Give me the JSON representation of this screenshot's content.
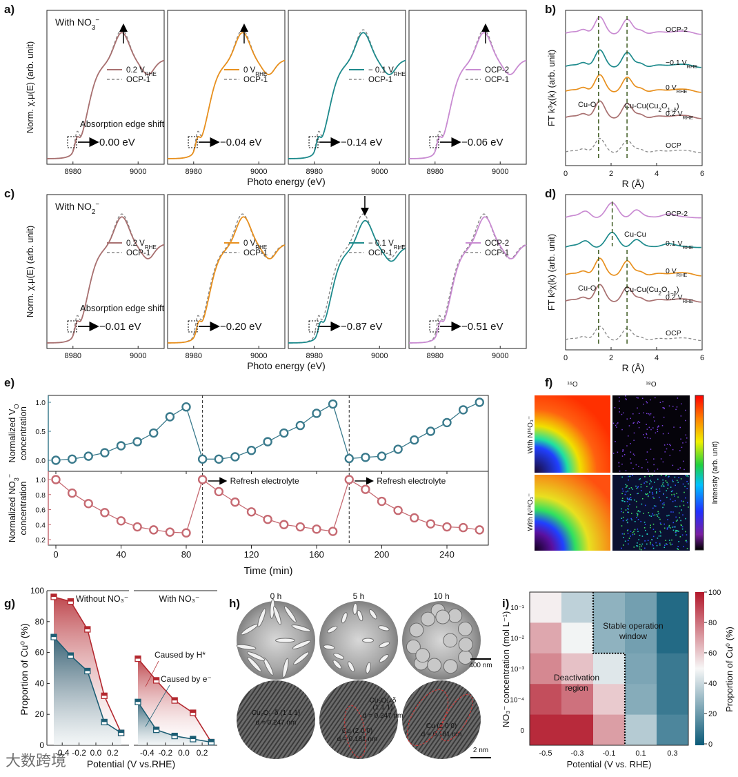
{
  "watermark": "大数跨境",
  "xanes": {
    "xlabel": "Photo energy (eV)",
    "ylabel": "Norm. χ.μ(E) (arb. unit)",
    "xticks": [
      8980,
      9000
    ],
    "xrange": [
      8972,
      9008
    ],
    "edge_text": "Absorption edge shift",
    "panels": [
      {
        "label": "a)",
        "condition": {
          "main": "With NO",
          "sub": "3",
          "sup": "−"
        },
        "subplots": [
          {
            "series": "0.2 V",
            "sub": "RHE",
            "ref": "OCP-1",
            "shift": "0.00 eV",
            "shift_value": 0.0,
            "color": "#a87070",
            "arrow": "up"
          },
          {
            "series": "0 V",
            "sub": "RHE",
            "ref": "OCP-1",
            "shift": "−0.04 eV",
            "shift_value": -0.04,
            "color": "#e8901e",
            "arrow": "up"
          },
          {
            "series": "− 0.1 V",
            "sub": "RHE",
            "ref": "OCP-1",
            "shift": "−0.14 eV",
            "shift_value": -0.14,
            "color": "#1d8a8c",
            "arrow": "none"
          },
          {
            "series": "OCP-2",
            "sub": "",
            "ref": "OCP-1",
            "shift": "−0.06 eV",
            "shift_value": -0.06,
            "color": "#c98bd2",
            "arrow": "up"
          }
        ]
      },
      {
        "label": "c)",
        "condition": {
          "main": "With NO",
          "sub": "2",
          "sup": "−"
        },
        "subplots": [
          {
            "series": "0.2 V",
            "sub": "RHE",
            "ref": "OCP-1",
            "shift": "−0.01 eV",
            "shift_value": -0.01,
            "color": "#a87070",
            "arrow": "none"
          },
          {
            "series": "0 V",
            "sub": "RHE",
            "ref": "OCP-1",
            "shift": "−0.20 eV",
            "shift_value": -0.2,
            "color": "#e8901e",
            "arrow": "none"
          },
          {
            "series": "− 0.1 V",
            "sub": "RHE",
            "ref": "OCP-1",
            "shift": "−0.87 eV",
            "shift_value": -0.87,
            "color": "#1d8a8c",
            "arrow": "down"
          },
          {
            "series": "OCP-2",
            "sub": "",
            "ref": "OCP-1",
            "shift": "−0.51 eV",
            "shift_value": -0.51,
            "color": "#c98bd2",
            "arrow": "none"
          }
        ]
      }
    ]
  },
  "exafs": {
    "xlabel": "R (Å)",
    "ylabel": "FT k³χ(k) (arb. unit)",
    "xticks": [
      0,
      2,
      4,
      6
    ],
    "panels": [
      {
        "label": "b)",
        "traces": [
          {
            "name": "OCP-2",
            "sub": "",
            "color": "#c98bd2"
          },
          {
            "name": "−0.1 V",
            "sub": "RHE",
            "color": "#1d8a8c"
          },
          {
            "name": "0 V",
            "sub": "RHE",
            "color": "#e8901e"
          },
          {
            "name": "0.2 V",
            "sub": "RHE",
            "color": "#a87070"
          },
          {
            "name": "OCP",
            "sub": "",
            "color": "#888888"
          }
        ],
        "annot_cuo": "Cu-O",
        "annot_cucu2o": {
          "main": "Cu-Cu(Cu",
          "s1": "2",
          "mid": "O",
          "s2": "1−δ",
          "end": ")"
        },
        "annot_cucu": ""
      },
      {
        "label": "d)",
        "traces": [
          {
            "name": "OCP-2",
            "sub": "",
            "color": "#c98bd2"
          },
          {
            "name": "0.1 V",
            "sub": "RHE",
            "color": "#1d8a8c"
          },
          {
            "name": "0 V",
            "sub": "RHE",
            "color": "#e8901e"
          },
          {
            "name": "0.2 V",
            "sub": "RHE",
            "color": "#a87070"
          },
          {
            "name": "OCP",
            "sub": "",
            "color": "#888888"
          }
        ],
        "annot_cuo": "Cu-O",
        "annot_cucu2o": {
          "main": "Cu-Cu(Cu",
          "s1": "2",
          "mid": "O",
          "s2": "1−δ",
          "end": ")"
        },
        "annot_cucu": "Cu-Cu"
      }
    ]
  },
  "panel_f": {
    "label": "f)",
    "col_labels": [
      "¹⁶O",
      "¹⁸O"
    ],
    "row_labels": [
      "With N¹⁶O₃⁻",
      "With N¹⁸O₃⁻"
    ],
    "colorbar_label": "Intensity (arb. unit)"
  },
  "panel_h": {
    "label": "h)",
    "times": [
      "0 h",
      "5 h",
      "10 h"
    ],
    "scale_top": "400 nm",
    "scale_bottom": "2 nm",
    "annotations": [
      [
        "Cu₂O₁₋δ (1 1 1)",
        "d = 0.247 nm"
      ],
      [
        "Cu₂O₁₋δ",
        "(1 1 1)",
        "d = 0.247 nm",
        "Cu (2 0 0)",
        "d = 0.181 nm"
      ],
      [
        "Cu (2 0 0)",
        "d = 0.181 nm"
      ]
    ]
  },
  "chart_data": [
    {
      "id": "e",
      "label": "e)",
      "type": "line",
      "xlabel": "Time (min)",
      "xticks": [
        0,
        40,
        80,
        120,
        160,
        200,
        240
      ],
      "xlim": [
        -5,
        265
      ],
      "x": [
        0,
        10,
        20,
        30,
        40,
        50,
        60,
        70,
        80,
        90,
        100,
        110,
        120,
        130,
        140,
        150,
        160,
        170,
        180,
        190,
        200,
        210,
        220,
        230,
        240,
        250,
        260
      ],
      "refresh_times": [
        90,
        180
      ],
      "annotation": "Refresh electrolyte",
      "series": [
        {
          "name": "Normalized VO concentration",
          "ylabel_main": "Normalized V",
          "ylabel_sub": "O",
          "ylabel2": "concentration",
          "color": "#3a7a8c",
          "yticks": [
            "0.0",
            "0.5",
            "1.0"
          ],
          "ylim": [
            -0.1,
            1.05
          ],
          "values": [
            0,
            0.02,
            0.07,
            0.13,
            0.25,
            0.32,
            0.47,
            0.75,
            0.92,
            0.02,
            0.02,
            0.06,
            0.17,
            0.32,
            0.47,
            0.6,
            0.81,
            0.97,
            0.03,
            0.05,
            0.07,
            0.19,
            0.35,
            0.5,
            0.65,
            0.87,
            1.0
          ]
        },
        {
          "name": "Normalized NO3- concentration",
          "ylabel_main": "Normalized NO",
          "ylabel_sub": "3",
          "ylabel_sup": "−",
          "ylabel2": "concentration",
          "color": "#c66a72",
          "yticks": [
            "0.2",
            "0.4",
            "0.6",
            "0.8",
            "1.0"
          ],
          "ylim": [
            0.15,
            1.08
          ],
          "values": [
            1.0,
            0.82,
            0.68,
            0.56,
            0.45,
            0.37,
            0.33,
            0.3,
            0.29,
            1.0,
            0.84,
            0.7,
            0.57,
            0.47,
            0.4,
            0.37,
            0.34,
            0.31,
            1.0,
            0.87,
            0.71,
            0.59,
            0.49,
            0.41,
            0.37,
            0.36,
            0.33
          ]
        }
      ]
    },
    {
      "id": "g",
      "label": "g)",
      "type": "area",
      "ylabel": "Proportion of Cu⁰ (%)",
      "xlabel": "Potential (V vs.RHE)",
      "ylim": [
        0,
        100
      ],
      "yticks": [
        0,
        20,
        40,
        60,
        80,
        100
      ],
      "xticks": [
        "-0.4",
        "-0.2",
        "0.0",
        "0.2"
      ],
      "x": [
        -0.5,
        -0.3,
        -0.1,
        0.1,
        0.3
      ],
      "annot_h": "Caused by H*",
      "annot_e": "Caused by e⁻",
      "subplots": [
        {
          "title": "Without NO₃⁻",
          "total": [
            96,
            93,
            75,
            32,
            8
          ],
          "electron": [
            70,
            58,
            48,
            15,
            8
          ]
        },
        {
          "title": "With NO₃⁻",
          "total": [
            56,
            42,
            29,
            21,
            2
          ],
          "electron": [
            28,
            10,
            6,
            4,
            2
          ]
        }
      ],
      "colors": {
        "h": "#b3282f",
        "e": "#1d5e74"
      }
    },
    {
      "id": "i",
      "label": "i)",
      "type": "heatmap",
      "xlabel": "Potential (V vs. RHE)",
      "ylabel": "NO₃⁻ concentration (mol L⁻¹)",
      "x": [
        "-0.5",
        "-0.3",
        "-0.1",
        "0.1",
        "0.3"
      ],
      "y": [
        "10⁻¹",
        "10⁻²",
        "10⁻³",
        "10⁻⁴",
        "0"
      ],
      "values": [
        [
          52,
          38,
          28,
          22,
          5
        ],
        [
          68,
          49,
          28,
          22,
          5
        ],
        [
          75,
          62,
          45,
          24,
          10
        ],
        [
          88,
          80,
          60,
          26,
          10
        ],
        [
          96,
          96,
          70,
          36,
          14
        ]
      ],
      "colorbar_label": "Proportion of Cu⁰ (%)",
      "colorbar_ticks": [
        0,
        20,
        40,
        60,
        80,
        100
      ],
      "annot_stable": [
        "Stable operation",
        "window"
      ],
      "annot_deact": [
        "Deactivation",
        "region"
      ],
      "colors": {
        "low": "#0b5a78",
        "mid": "#f7f7f7",
        "high": "#b2182b"
      }
    }
  ]
}
